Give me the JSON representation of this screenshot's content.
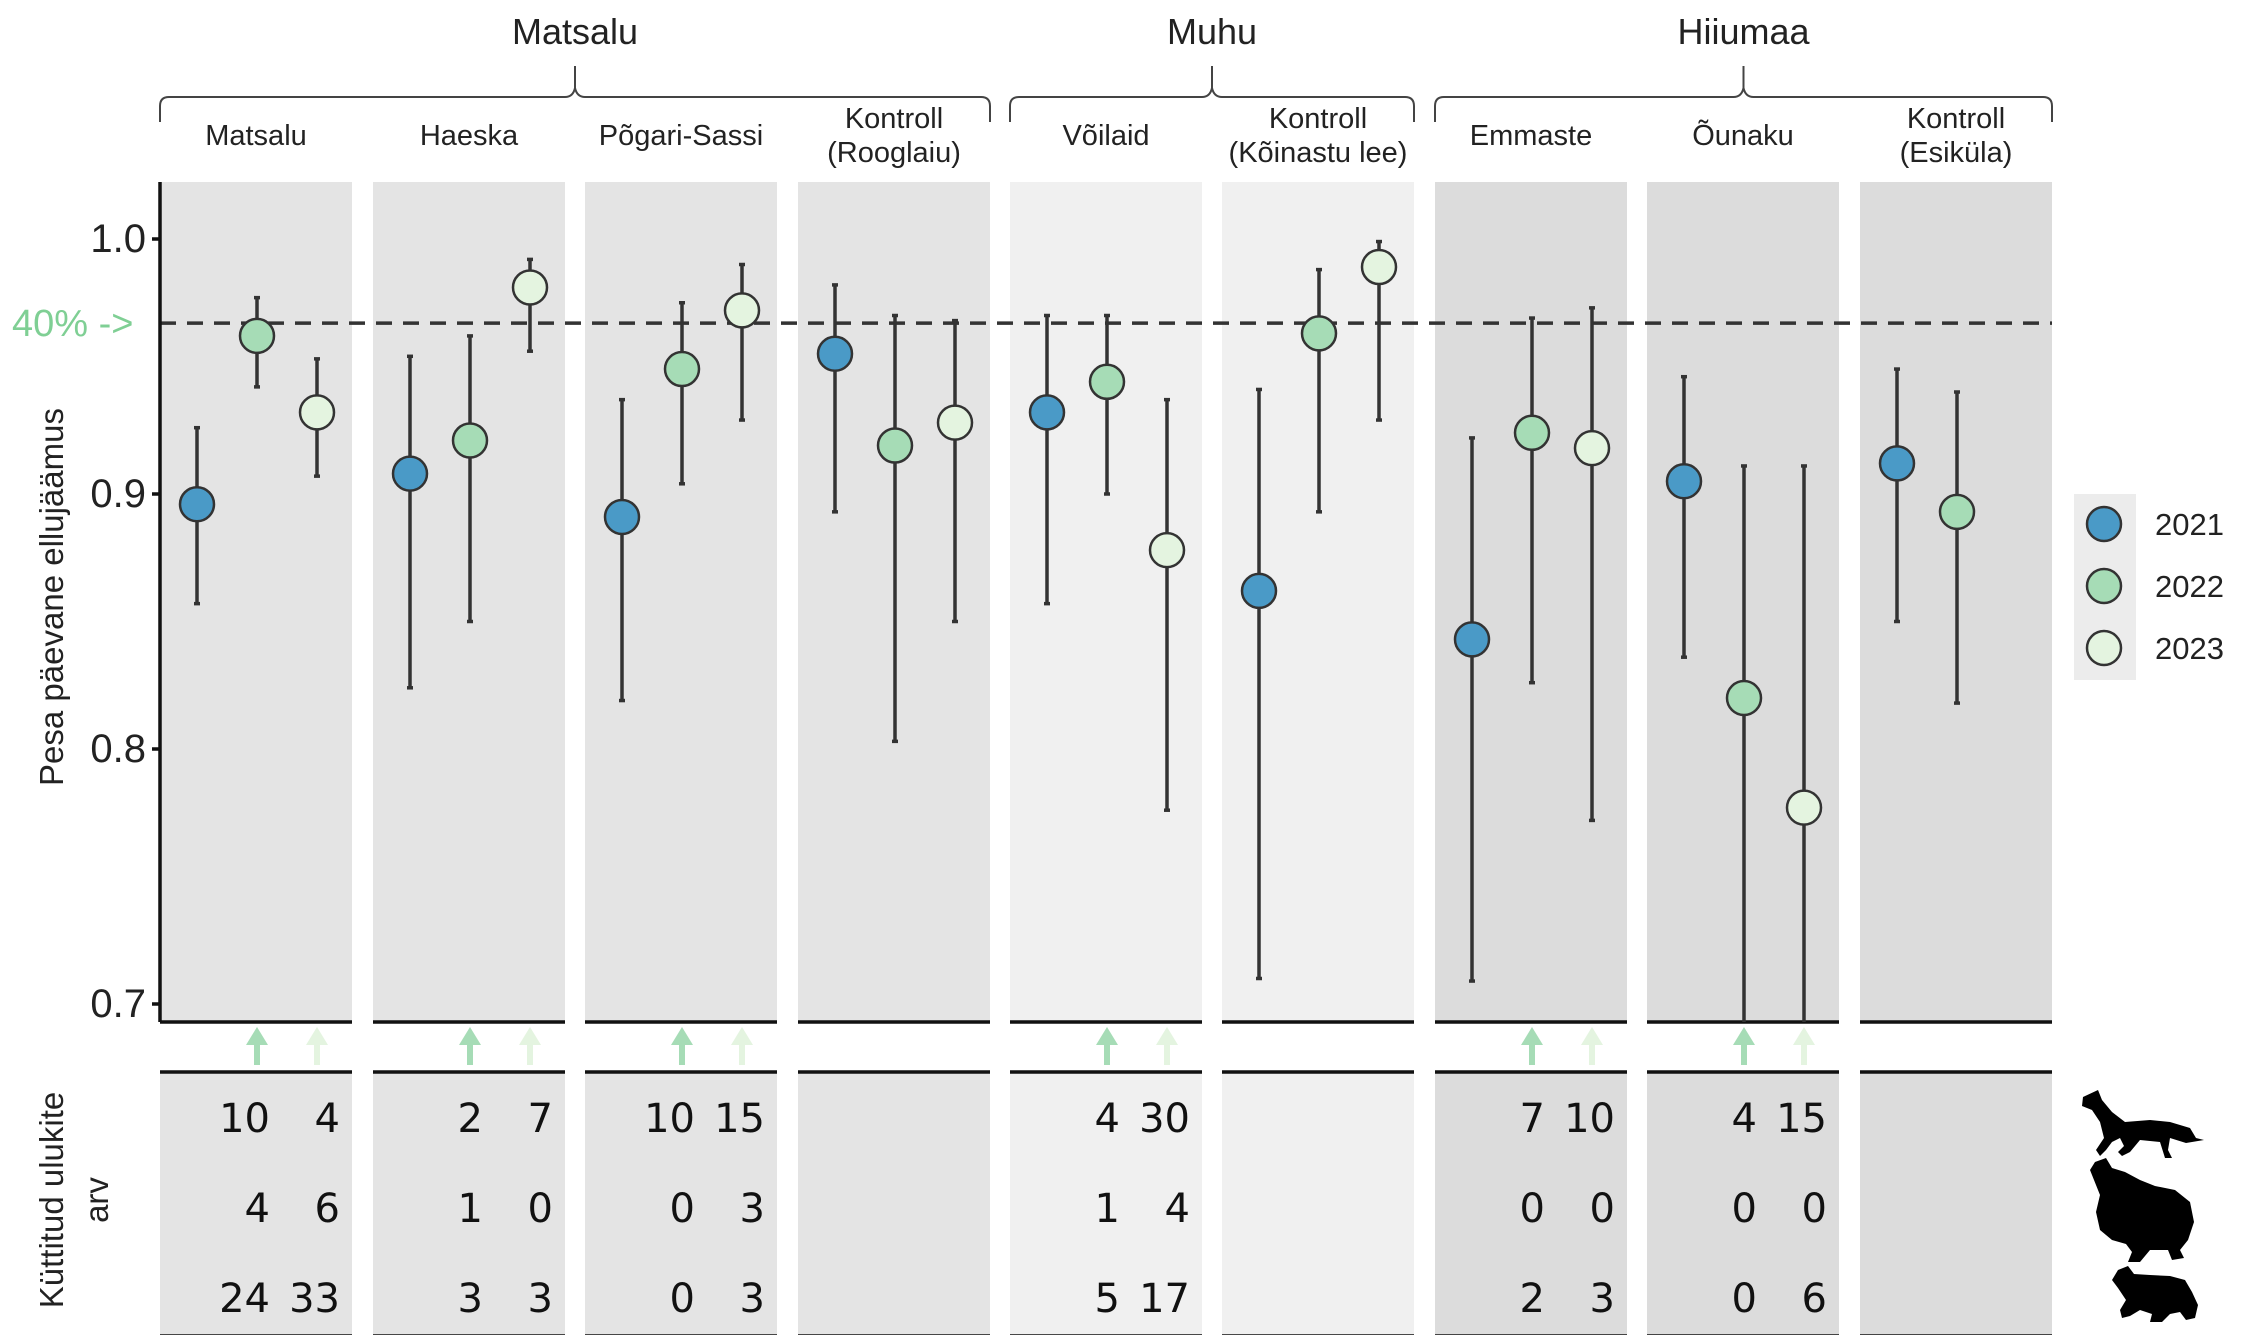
{
  "chart_data": {
    "type": "scatter",
    "ylabel": "Pesa päevane ellujäämus",
    "ylim": [
      0.69,
      1.02
    ],
    "y_ticks": [
      "1.0",
      "0.9",
      "0.8",
      "0.7"
    ],
    "threshold": {
      "value": 0.967,
      "label": "40% ->",
      "color": "#7fcf94"
    },
    "legend": {
      "placement": "right",
      "entries": [
        {
          "label": "2021",
          "color": "#4a9ac7"
        },
        {
          "label": "2022",
          "color": "#a6dcb6"
        },
        {
          "label": "2023",
          "color": "#e4f4e0"
        }
      ]
    },
    "regions": [
      {
        "name": "Matsalu",
        "panels": [
          0,
          1,
          2,
          3
        ]
      },
      {
        "name": "Muhu",
        "panels": [
          4,
          5
        ]
      },
      {
        "name": "Hiiumaa",
        "panels": [
          6,
          7,
          8
        ]
      }
    ],
    "panels": [
      {
        "label": [
          "Matsalu"
        ],
        "shade": "#e4e4e4",
        "points": [
          {
            "year": "2021",
            "y": 0.896,
            "lo": 0.857,
            "hi": 0.926
          },
          {
            "year": "2022",
            "y": 0.962,
            "lo": 0.942,
            "hi": 0.977
          },
          {
            "year": "2023",
            "y": 0.932,
            "lo": 0.907,
            "hi": 0.953
          }
        ],
        "arrows": [
          "2022",
          "2023"
        ],
        "hunted": [
          [
            "10",
            "4"
          ],
          [
            "4",
            "6"
          ],
          [
            "24",
            "33"
          ]
        ]
      },
      {
        "label": [
          "Haeska"
        ],
        "shade": "#e4e4e4",
        "points": [
          {
            "year": "2021",
            "y": 0.908,
            "lo": 0.824,
            "hi": 0.954
          },
          {
            "year": "2022",
            "y": 0.921,
            "lo": 0.85,
            "hi": 0.962
          },
          {
            "year": "2023",
            "y": 0.981,
            "lo": 0.956,
            "hi": 0.992
          }
        ],
        "arrows": [
          "2022",
          "2023"
        ],
        "hunted": [
          [
            "2",
            "7"
          ],
          [
            "1",
            "0"
          ],
          [
            "3",
            "3"
          ]
        ]
      },
      {
        "label": [
          "Põgari-Sassi"
        ],
        "shade": "#e4e4e4",
        "points": [
          {
            "year": "2021",
            "y": 0.891,
            "lo": 0.819,
            "hi": 0.937
          },
          {
            "year": "2022",
            "y": 0.949,
            "lo": 0.904,
            "hi": 0.975
          },
          {
            "year": "2023",
            "y": 0.972,
            "lo": 0.929,
            "hi": 0.99
          }
        ],
        "arrows": [
          "2022",
          "2023"
        ],
        "hunted": [
          [
            "10",
            "15"
          ],
          [
            "0",
            "3"
          ],
          [
            "0",
            "3"
          ]
        ]
      },
      {
        "label": [
          "Kontroll",
          "(Rooglaiu)"
        ],
        "shade": "#e4e4e4",
        "points": [
          {
            "year": "2021",
            "y": 0.955,
            "lo": 0.893,
            "hi": 0.982
          },
          {
            "year": "2022",
            "y": 0.919,
            "lo": 0.803,
            "hi": 0.97
          },
          {
            "year": "2023",
            "y": 0.928,
            "lo": 0.85,
            "hi": 0.968
          }
        ],
        "arrows": [],
        "hunted": []
      },
      {
        "label": [
          "Võilaid"
        ],
        "shade": "#f0f0f0",
        "points": [
          {
            "year": "2021",
            "y": 0.932,
            "lo": 0.857,
            "hi": 0.97
          },
          {
            "year": "2022",
            "y": 0.944,
            "lo": 0.9,
            "hi": 0.97
          },
          {
            "year": "2023",
            "y": 0.878,
            "lo": 0.776,
            "hi": 0.937
          }
        ],
        "arrows": [
          "2022",
          "2023"
        ],
        "hunted": [
          [
            "4",
            "30"
          ],
          [
            "1",
            "4"
          ],
          [
            "5",
            "17"
          ]
        ]
      },
      {
        "label": [
          "Kontroll",
          "(Kõinastu lee)"
        ],
        "shade": "#f0f0f0",
        "points": [
          {
            "year": "2021",
            "y": 0.862,
            "lo": 0.71,
            "hi": 0.941
          },
          {
            "year": "2022",
            "y": 0.963,
            "lo": 0.893,
            "hi": 0.988
          },
          {
            "year": "2023",
            "y": 0.989,
            "lo": 0.929,
            "hi": 0.999
          }
        ],
        "arrows": [],
        "hunted": []
      },
      {
        "label": [
          "Emmaste"
        ],
        "shade": "#dcdcdc",
        "points": [
          {
            "year": "2021",
            "y": 0.843,
            "lo": 0.709,
            "hi": 0.922
          },
          {
            "year": "2022",
            "y": 0.924,
            "lo": 0.826,
            "hi": 0.969
          },
          {
            "year": "2023",
            "y": 0.918,
            "lo": 0.772,
            "hi": 0.973
          }
        ],
        "arrows": [
          "2022",
          "2023"
        ],
        "hunted": [
          [
            "7",
            "10"
          ],
          [
            "0",
            "0"
          ],
          [
            "2",
            "3"
          ]
        ]
      },
      {
        "label": [
          "Õunaku"
        ],
        "shade": "#dcdcdc",
        "points": [
          {
            "year": "2021",
            "y": 0.905,
            "lo": 0.836,
            "hi": 0.946
          },
          {
            "year": "2022",
            "y": 0.82,
            "lo": 0.69,
            "hi": 0.911
          },
          {
            "year": "2023",
            "y": 0.777,
            "lo": 0.69,
            "hi": 0.911
          }
        ],
        "arrows": [
          "2022",
          "2023"
        ],
        "hunted": [
          [
            "4",
            "15"
          ],
          [
            "0",
            "0"
          ],
          [
            "0",
            "6"
          ]
        ]
      },
      {
        "label": [
          "Kontroll",
          "(Esiküla)"
        ],
        "shade": "#dcdcdc",
        "points": [
          {
            "year": "2021",
            "y": 0.912,
            "lo": 0.85,
            "hi": 0.949
          },
          {
            "year": "2022",
            "y": 0.893,
            "lo": 0.818,
            "hi": 0.94
          }
        ],
        "arrows": [],
        "hunted": []
      }
    ],
    "table": {
      "ylabel_lines": [
        "Küttitud ulukite",
        "arv"
      ],
      "row_icons": [
        "fox-icon",
        "raccoon-dog-icon",
        "mink-icon"
      ]
    }
  }
}
